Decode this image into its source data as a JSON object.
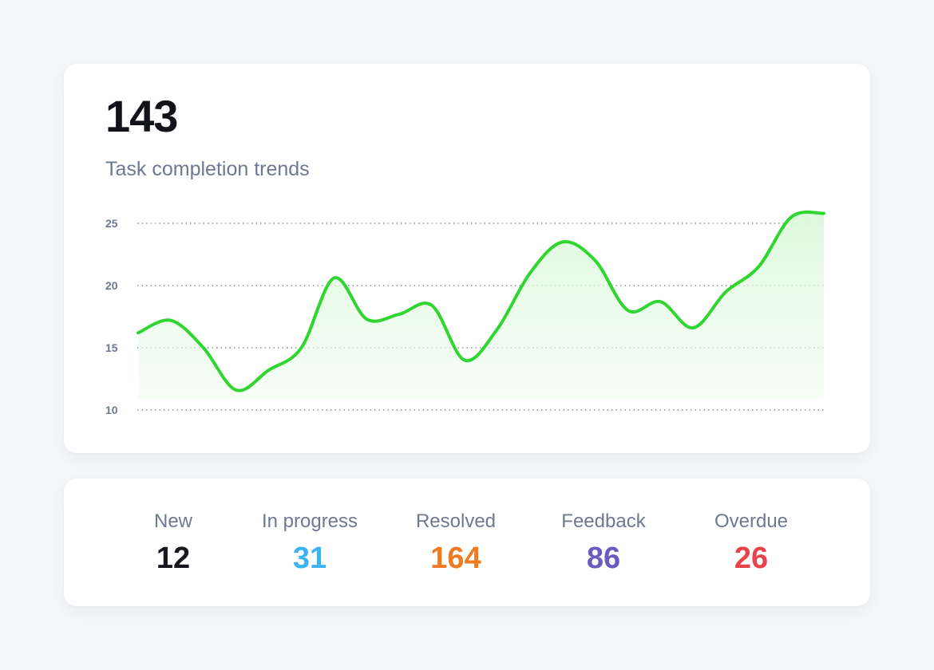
{
  "summary": {
    "total": "143",
    "title": "Task completion trends"
  },
  "colors": {
    "line": "#2fd62f",
    "fill": "#e6f9e6",
    "grid": "#8a90a0"
  },
  "chart_data": {
    "type": "area",
    "title": "Task completion trends",
    "xlabel": "",
    "ylabel": "",
    "ylim": [
      10,
      25
    ],
    "yticks": [
      10,
      15,
      20,
      25
    ],
    "grid": true,
    "x": [
      0,
      1,
      2,
      3,
      4,
      5,
      6,
      7,
      8,
      9,
      10,
      11,
      12,
      13,
      14,
      15,
      16,
      17,
      18,
      19,
      20,
      21
    ],
    "series": [
      {
        "values": [
          16.2,
          17.2,
          15.0,
          11.6,
          13.2,
          15.0,
          20.6,
          17.3,
          17.7,
          18.4,
          14.0,
          16.5,
          21.0,
          23.5,
          22.0,
          18.0,
          18.7,
          16.6,
          19.5,
          21.5,
          25.5,
          25.8
        ]
      }
    ]
  },
  "stats": [
    {
      "label": "New",
      "value": "12",
      "color": "#16181d"
    },
    {
      "label": "In progress",
      "value": "31",
      "color": "#3db4f2"
    },
    {
      "label": "Resolved",
      "value": "164",
      "color": "#f07a22"
    },
    {
      "label": "Feedback",
      "value": "86",
      "color": "#6a5bc1"
    },
    {
      "label": "Overdue",
      "value": "26",
      "color": "#e8434a"
    }
  ]
}
